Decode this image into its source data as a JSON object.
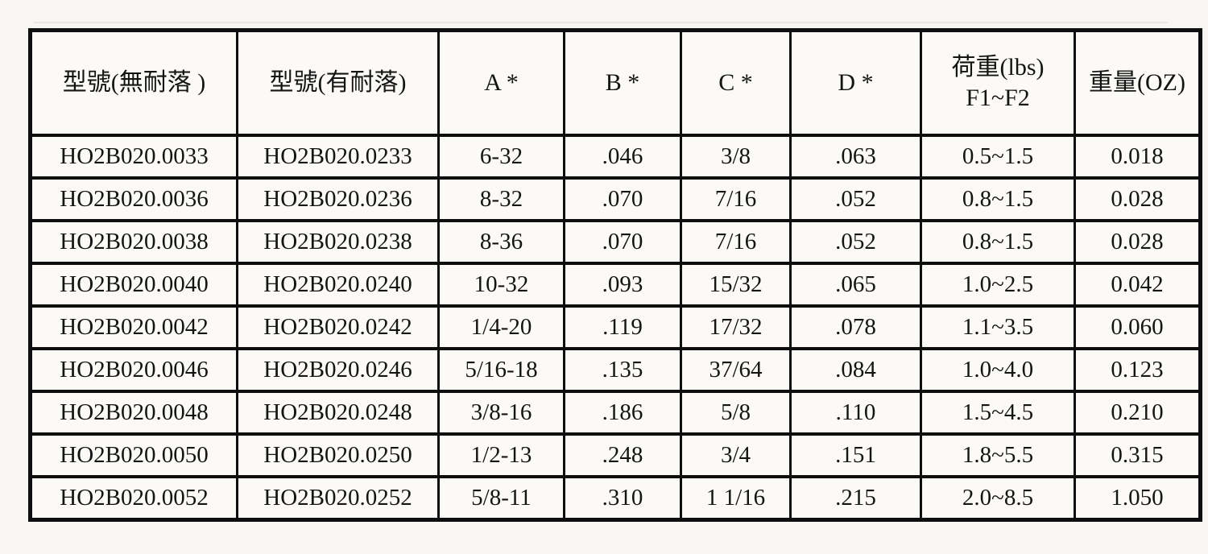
{
  "page": {
    "background": "#f7f6f2",
    "cell_background": "#fbfaf7",
    "border_color": "#0e0e0e"
  },
  "table": {
    "columns": [
      {
        "key": "model_plain",
        "label": "型號(無耐落 )"
      },
      {
        "key": "model_patch",
        "label": "型號(有耐落)"
      },
      {
        "key": "dim_a",
        "label": "A *"
      },
      {
        "key": "dim_b",
        "label": "B *"
      },
      {
        "key": "dim_c",
        "label": "C *"
      },
      {
        "key": "dim_d",
        "label": "D *"
      },
      {
        "key": "load",
        "label": "荷重(lbs)",
        "label_line2": "F1~F2"
      },
      {
        "key": "weight",
        "label": "重量(OZ)"
      }
    ],
    "rows": [
      [
        "HO2B020.0033",
        "HO2B020.0233",
        "6-32",
        ".046",
        "3/8",
        ".063",
        "0.5~1.5",
        "0.018"
      ],
      [
        "HO2B020.0036",
        "HO2B020.0236",
        "8-32",
        ".070",
        "7/16",
        ".052",
        "0.8~1.5",
        "0.028"
      ],
      [
        "HO2B020.0038",
        "HO2B020.0238",
        "8-36",
        ".070",
        "7/16",
        ".052",
        "0.8~1.5",
        "0.028"
      ],
      [
        "HO2B020.0040",
        "HO2B020.0240",
        "10-32",
        ".093",
        "15/32",
        ".065",
        "1.0~2.5",
        "0.042"
      ],
      [
        "HO2B020.0042",
        "HO2B020.0242",
        "1/4-20",
        ".119",
        "17/32",
        ".078",
        "1.1~3.5",
        "0.060"
      ],
      [
        "HO2B020.0046",
        "HO2B020.0246",
        "5/16-18",
        ".135",
        "37/64",
        ".084",
        "1.0~4.0",
        "0.123"
      ],
      [
        "HO2B020.0048",
        "HO2B020.0248",
        "3/8-16",
        ".186",
        "5/8",
        ".110",
        "1.5~4.5",
        "0.210"
      ],
      [
        "HO2B020.0050",
        "HO2B020.0250",
        "1/2-13",
        ".248",
        "3/4",
        ".151",
        "1.8~5.5",
        "0.315"
      ],
      [
        "HO2B020.0052",
        "HO2B020.0252",
        "5/8-11",
        ".310",
        "1 1/16",
        ".215",
        "2.0~8.5",
        "1.050"
      ]
    ]
  }
}
